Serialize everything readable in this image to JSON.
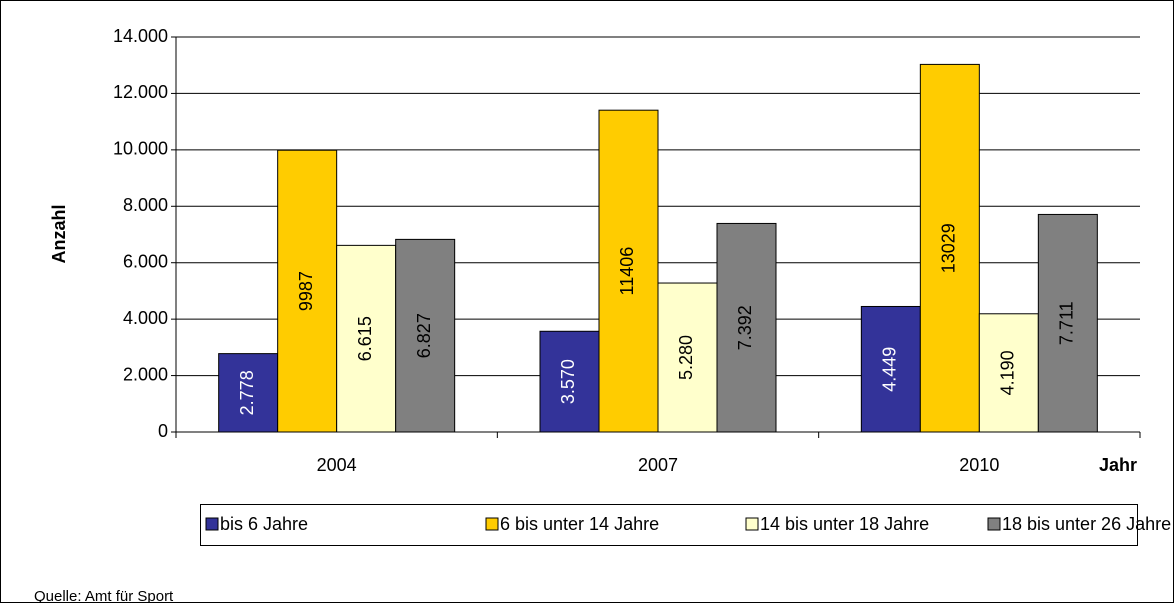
{
  "chart_data": {
    "type": "bar",
    "categories": [
      "2004",
      "2007",
      "2010"
    ],
    "x_label": "Jahr",
    "y_label": "Anzahl",
    "series": [
      {
        "name": "bis 6 Jahre",
        "color": "#333399",
        "values": [
          2778,
          3570,
          4449
        ],
        "value_labels": [
          "2.778",
          "3.570",
          "4.449"
        ]
      },
      {
        "name": "6 bis unter 14 Jahre",
        "color": "#ffcc00",
        "values": [
          9987,
          11406,
          13029
        ]
      },
      {
        "name": "14 bis unter 18 Jahre",
        "color": "#ffffcc",
        "values": [
          6615,
          5280,
          4190
        ],
        "value_labels": [
          "6.615",
          "5.280",
          "4.190"
        ]
      },
      {
        "name": "18 bis unter 26 Jahre",
        "color": "#808080",
        "values": [
          6827,
          7392,
          7711
        ],
        "value_labels": [
          "6.827",
          "7.392",
          "7.711"
        ]
      }
    ],
    "ylim": [
      0,
      14000
    ],
    "yticks": [
      0,
      {
        "value": 2000,
        "label": "2.000"
      },
      {
        "value": 4000,
        "label": "4.000"
      },
      {
        "value": 6000,
        "label": "6.000"
      },
      {
        "value": 8000,
        "label": "8.000"
      },
      {
        "value": 10000,
        "label": "10.000"
      },
      {
        "value": 12000,
        "label": "12.000"
      },
      {
        "value": 14000,
        "label": "14.000"
      }
    ],
    "grid": true,
    "source": "Quelle: Amt für Sport"
  }
}
